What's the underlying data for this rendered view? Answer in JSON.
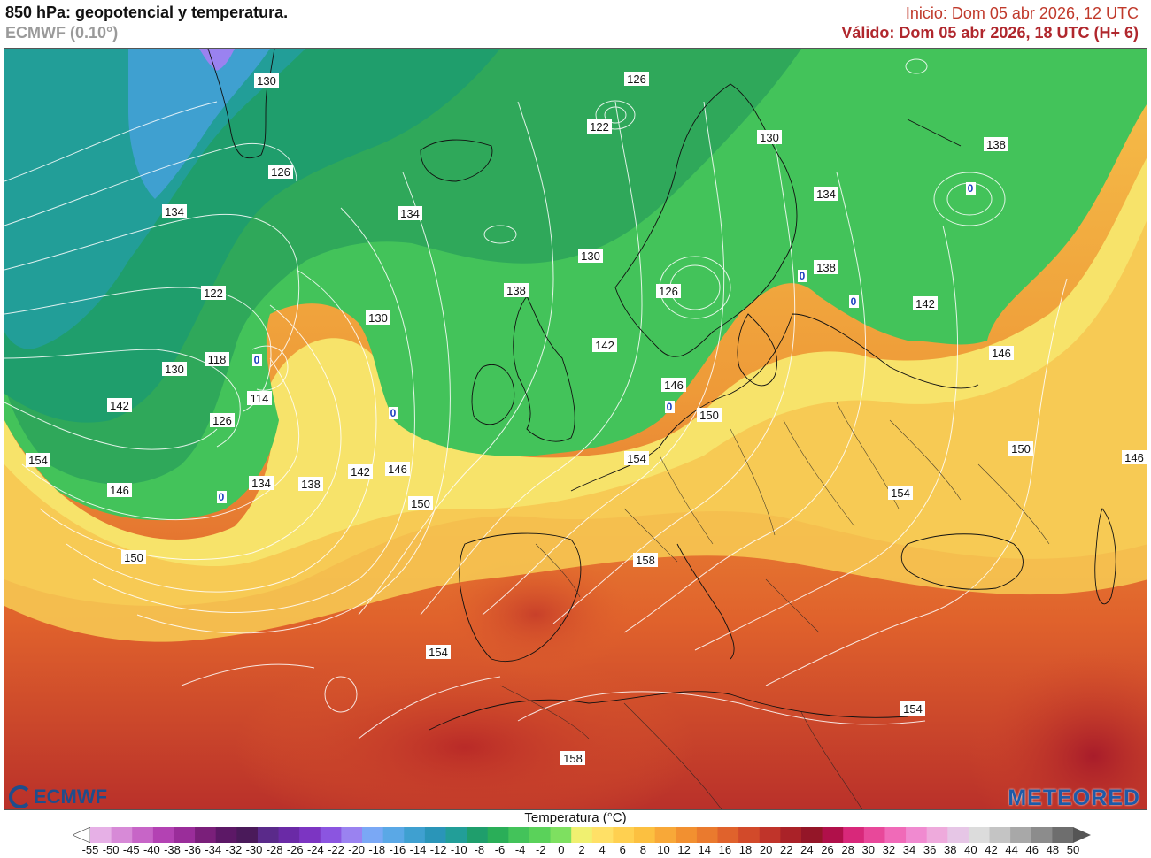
{
  "header": {
    "title": "850 hPa: geopotencial y temperatura.",
    "model": "ECMWF (0.10°)",
    "init": "Inicio: Dom 05 abr 2026, 12 UTC",
    "valid": "Válido: Dom 05 abr 2026, 18 UTC (H+ 6)"
  },
  "logos": {
    "left": "ECMWF",
    "right": "METEORED"
  },
  "map": {
    "contour_labels": [
      "130",
      "126",
      "122",
      "130",
      "126",
      "134",
      "134",
      "138",
      "130",
      "134",
      "138",
      "122",
      "118",
      "130",
      "142",
      "126",
      "114",
      "154",
      "146",
      "134",
      "138",
      "142",
      "146",
      "150",
      "150",
      "142",
      "138",
      "146",
      "142",
      "130",
      "126",
      "146",
      "150",
      "154",
      "150",
      "154",
      "146",
      "158",
      "154",
      "154",
      "158"
    ],
    "freezing_labels": [
      "0",
      "0",
      "0",
      "0",
      "0",
      "0",
      "0"
    ]
  },
  "colorbar": {
    "title": "Temperatura (°C)",
    "ticks": [
      "-55",
      "-50",
      "-45",
      "-40",
      "-38",
      "-36",
      "-34",
      "-32",
      "-30",
      "-28",
      "-26",
      "-24",
      "-22",
      "-20",
      "-18",
      "-16",
      "-14",
      "-12",
      "-10",
      "-8",
      "-6",
      "-4",
      "-2",
      "0",
      "2",
      "4",
      "6",
      "8",
      "10",
      "12",
      "14",
      "16",
      "18",
      "20",
      "22",
      "24",
      "26",
      "28",
      "30",
      "32",
      "34",
      "36",
      "38",
      "40",
      "42",
      "44",
      "46",
      "48",
      "50"
    ],
    "colors": [
      "#ffffff",
      "#e6b0e6",
      "#d78ad7",
      "#c765c7",
      "#b342b3",
      "#9a2d9a",
      "#7a1f7a",
      "#5c1866",
      "#4a1a5a",
      "#5a2a8a",
      "#6a2aa6",
      "#7c35c2",
      "#8b55e0",
      "#9a82f0",
      "#7aa8f5",
      "#5aa8e6",
      "#3fa0d0",
      "#2a95b8",
      "#229e98",
      "#1f9e6c",
      "#2aae58",
      "#43c35a",
      "#5ad25a",
      "#7ee060",
      "#f0f070",
      "#ffe066",
      "#ffd050",
      "#fcc040",
      "#f8a838",
      "#f29030",
      "#ea7a2e",
      "#e0622c",
      "#d24a2a",
      "#c0342a",
      "#aa2228",
      "#941628",
      "#b0104a",
      "#d8287a",
      "#e8489a",
      "#f06ab8",
      "#f08ad0",
      "#eeaadc",
      "#e6c6e6",
      "#dcdcdc",
      "#c4c4c4",
      "#a8a8a8",
      "#8c8c8c",
      "#6e6e6e",
      "#555555"
    ]
  }
}
